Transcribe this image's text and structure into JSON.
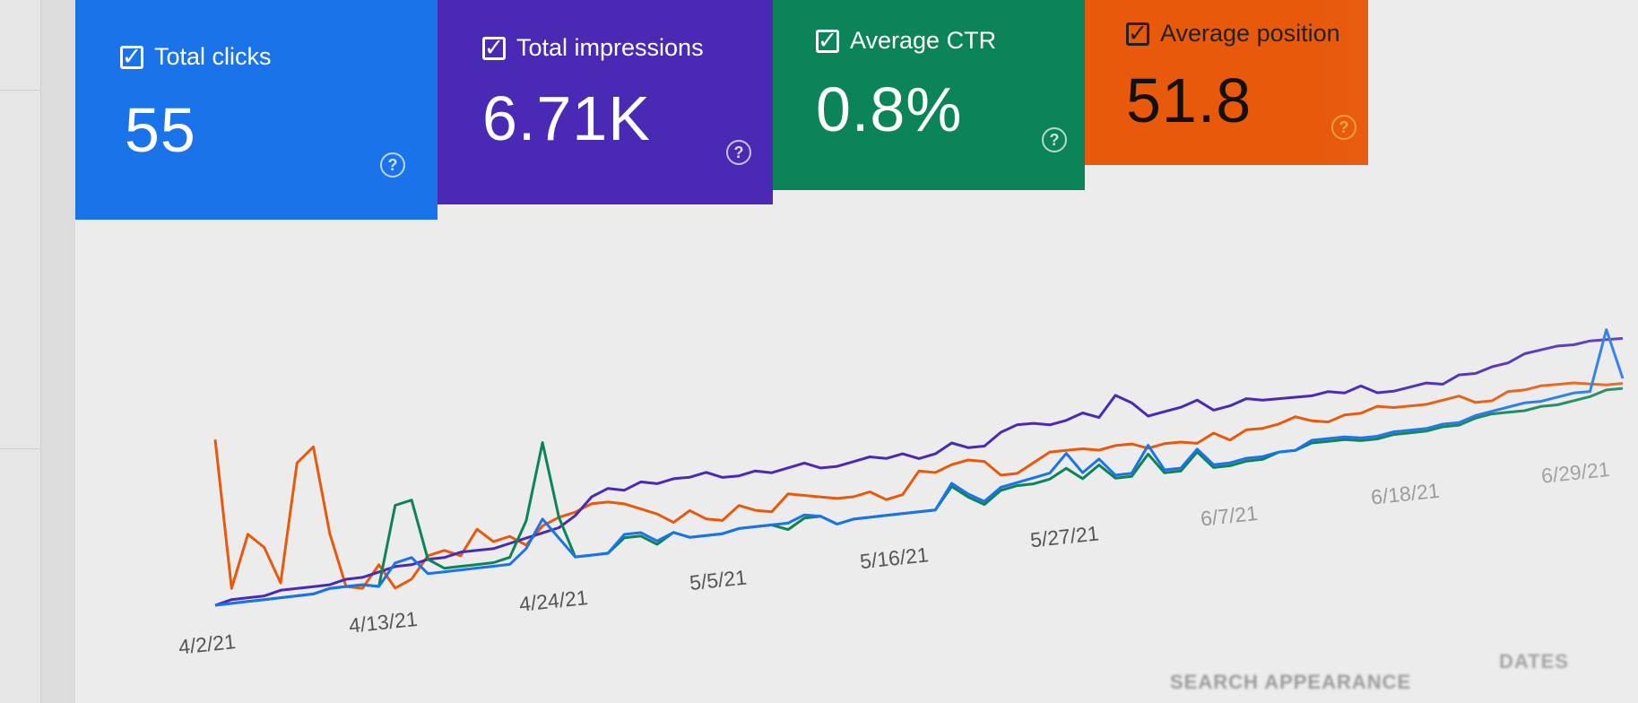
{
  "metrics": [
    {
      "label": "Total clicks",
      "value": "55",
      "color": "#1a73e8",
      "checked": true,
      "help_icon": "help-circle-icon"
    },
    {
      "label": "Total impressions",
      "value": "6.71K",
      "color": "#4a2ab5",
      "checked": true,
      "help_icon": "help-circle-icon"
    },
    {
      "label": "Average CTR",
      "value": "0.8%",
      "color": "#0b8457",
      "checked": true,
      "help_icon": "help-circle-icon"
    },
    {
      "label": "Average position",
      "value": "51.8",
      "color": "#e8590c",
      "checked": true,
      "help_icon": "help-circle-icon"
    }
  ],
  "chart_data": {
    "type": "line",
    "x_tick_labels": [
      "4/2/21",
      "4/13/21",
      "4/24/21",
      "5/5/21",
      "5/16/21",
      "5/27/21",
      "6/7/21",
      "6/18/21",
      "6/29/21"
    ],
    "series": [
      {
        "color": "#e8590c",
        "values": [
          88,
          48,
          62,
          58,
          48,
          80,
          84,
          60,
          45,
          44,
          50,
          43,
          45,
          51,
          52,
          50,
          57,
          53,
          54,
          51,
          56,
          58,
          59,
          61,
          61,
          60,
          58,
          56,
          53,
          56,
          53,
          52,
          56,
          54,
          53,
          58,
          57,
          56,
          55,
          55,
          56,
          53,
          54,
          61,
          60,
          62,
          63,
          62,
          57,
          57,
          60,
          63,
          63,
          63,
          62,
          63,
          63,
          61,
          62,
          62,
          61,
          64,
          61,
          64,
          64,
          65,
          67,
          65,
          64,
          66,
          66,
          68,
          67,
          67,
          67,
          68,
          69,
          66,
          66,
          69,
          69,
          70,
          70,
          70,
          69,
          68,
          68
        ]
      },
      {
        "color": "#4a2ab5",
        "values": [
          44,
          45,
          45,
          45,
          46,
          46,
          46,
          46,
          47,
          47,
          48,
          49,
          49,
          50,
          50,
          51,
          51,
          51,
          52,
          53,
          54,
          55,
          58,
          63,
          65,
          64,
          66,
          65,
          66,
          66,
          67,
          65,
          65,
          66,
          65,
          66,
          67,
          65,
          65,
          66,
          67,
          66,
          67,
          65,
          66,
          69,
          67,
          67,
          71,
          73,
          73,
          72,
          73,
          75,
          73,
          80,
          77,
          72,
          73,
          74,
          76,
          72,
          73,
          75,
          74,
          74,
          74,
          74,
          75,
          74,
          76,
          73,
          73,
          74,
          75,
          74,
          77,
          77,
          79,
          80,
          83,
          84,
          85,
          85,
          86,
          86,
          86
        ]
      },
      {
        "color": "#0b8457",
        "values": [
          44,
          44,
          44,
          44,
          44,
          44,
          44,
          45,
          45,
          45,
          44,
          66,
          67,
          50,
          47,
          47,
          47,
          47,
          48,
          58,
          80,
          58,
          46,
          46,
          46,
          50,
          50,
          47,
          50,
          48,
          48,
          48,
          49,
          49,
          49,
          47,
          50,
          50,
          47,
          48,
          48,
          48,
          48,
          48,
          48,
          55,
          51,
          48,
          52,
          53,
          53,
          54,
          57,
          53,
          57,
          52,
          52,
          59,
          52,
          52,
          58,
          52,
          52,
          53,
          53,
          55,
          55,
          57,
          57,
          57,
          56,
          56,
          57,
          57,
          57,
          58,
          58,
          60,
          61,
          61,
          61,
          62,
          62,
          63,
          64,
          66,
          66
        ]
      },
      {
        "color": "#1a73e8",
        "values": [
          44,
          44,
          44,
          44,
          44,
          44,
          44,
          45,
          45,
          45,
          44,
          50,
          51,
          46,
          46,
          46,
          46,
          46,
          46,
          50,
          58,
          52,
          46,
          46,
          46,
          51,
          51,
          48,
          50,
          48,
          48,
          48,
          49,
          49,
          49,
          49,
          51,
          50,
          47,
          48,
          48,
          48,
          48,
          48,
          48,
          56,
          52,
          49,
          53,
          54,
          55,
          56,
          62,
          55,
          59,
          53,
          53,
          62,
          53,
          53,
          59,
          53,
          53,
          54,
          54,
          55,
          55,
          58,
          58,
          58,
          57,
          57,
          58,
          58,
          58,
          59,
          59,
          61,
          62,
          63,
          64,
          64,
          65,
          66,
          66,
          90,
          70
        ]
      }
    ]
  },
  "footer": {
    "search_appearance": "SEARCH APPEARANCE",
    "dates": "DATES"
  }
}
